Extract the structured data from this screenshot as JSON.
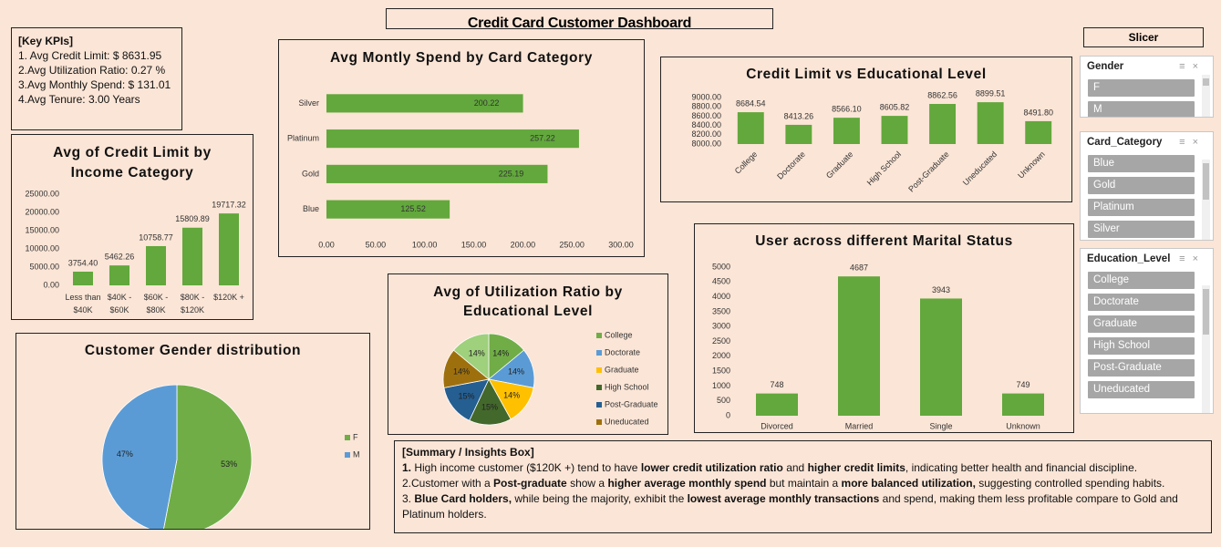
{
  "title": "Credit Card Customer Dashboard",
  "kpis": {
    "heading": "[Key KPIs]",
    "items": [
      "1. Avg Credit Limit: $ 8631.95",
      "2.Avg Utilization Ratio: 0.27 %",
      "3.Avg Monthly Spend: $ 131.01",
      "4.Avg Tenure: 3.00 Years"
    ]
  },
  "chart_data": [
    {
      "type": "bar",
      "horizontal": true,
      "title": "Avg Montly Spend by Card Category",
      "categories": [
        "Silver",
        "Platinum",
        "Gold",
        "Blue"
      ],
      "values": [
        200.22,
        257.22,
        225.19,
        125.52
      ],
      "color": "#62a83c",
      "xlim": [
        0,
        300
      ],
      "xticks": [
        {
          "value": 0,
          "label": "0.00"
        },
        {
          "value": 50,
          "label": "50.00"
        },
        {
          "value": 100,
          "label": "100.00"
        },
        {
          "value": 150,
          "label": "150.00"
        },
        {
          "value": 200,
          "label": "200.00"
        },
        {
          "value": 250,
          "label": "250.00"
        },
        {
          "value": 300,
          "label": "300.00"
        }
      ]
    },
    {
      "type": "bar",
      "title": "Credit Limit vs Educational Level",
      "categories": [
        "College",
        "Doctorate",
        "Graduate",
        "High School",
        "Post-Graduate",
        "Uneducated",
        "Unknown"
      ],
      "values": [
        8684.54,
        8413.26,
        8566.1,
        8605.82,
        8862.56,
        8899.51,
        8491.8
      ],
      "value_labels": [
        "8684.54",
        "8413.26",
        "8566.10",
        "8605.82",
        "8862.56",
        "8899.51",
        "8491.80"
      ],
      "color": "#62a83c",
      "ylim": [
        8000,
        9000
      ],
      "yticks": [
        {
          "value": 8000,
          "label": "8000.00"
        },
        {
          "value": 8200,
          "label": "8200.00"
        },
        {
          "value": 8400,
          "label": "8400.00"
        },
        {
          "value": 8600,
          "label": "8600.00"
        },
        {
          "value": 8800,
          "label": "8800.00"
        },
        {
          "value": 9000,
          "label": "9000.00"
        }
      ]
    },
    {
      "type": "bar",
      "title": "Avg of Credit Limit by Income Category",
      "categories": [
        "Less than $40K",
        "$40K - $60K",
        "$60K - $80K",
        "$80K - $120K",
        "$120K +"
      ],
      "values": [
        3754.4,
        5462.26,
        10758.77,
        15809.89,
        19717.32
      ],
      "value_labels": [
        "3754.40",
        "5462.26",
        "10758.77",
        "15809.89",
        "19717.32"
      ],
      "color": "#62a83c",
      "ylim": [
        0,
        25000
      ],
      "yticks": [
        {
          "value": 0,
          "label": "0.00"
        },
        {
          "value": 5000,
          "label": "5000.00"
        },
        {
          "value": 10000,
          "label": "10000.00"
        },
        {
          "value": 15000,
          "label": "15000.00"
        },
        {
          "value": 20000,
          "label": "20000.00"
        },
        {
          "value": 25000,
          "label": "25000.00"
        }
      ]
    },
    {
      "type": "bar",
      "title": "User across different Marital Status",
      "categories": [
        "Divorced",
        "Married",
        "Single",
        "Unknown"
      ],
      "values": [
        748,
        4687,
        3943,
        749
      ],
      "color": "#62a83c",
      "ylim": [
        0,
        5000
      ],
      "yticks": [
        0,
        500,
        1000,
        1500,
        2000,
        2500,
        3000,
        3500,
        4000,
        4500,
        5000
      ]
    },
    {
      "type": "pie",
      "title": "Avg of Utilization Ratio by Educational Level",
      "categories": [
        "College",
        "Doctorate",
        "Graduate",
        "High School",
        "Post-Graduate",
        "Uneducated",
        null
      ],
      "values": [
        14,
        14,
        14,
        15,
        15,
        14,
        14
      ],
      "value_labels": [
        "14%",
        "14%",
        "14%",
        "15%",
        "15%",
        "14%",
        "14%"
      ],
      "colors": [
        "#70ad47",
        "#5b9bd5",
        "#ffc000",
        "#43682b",
        "#255e91",
        "#9e700d",
        "#9fd07c"
      ],
      "legend": "right"
    },
    {
      "type": "pie",
      "title": "Customer Gender distribution",
      "categories": [
        "F",
        "M"
      ],
      "values": [
        53,
        47
      ],
      "value_labels": [
        "53%",
        "47%"
      ],
      "colors": [
        "#70ad47",
        "#5b9bd5"
      ],
      "legend": "right"
    }
  ],
  "slicer": {
    "title": "Slicer",
    "panels": [
      {
        "title": "Gender",
        "items": [
          "F",
          "M"
        ]
      },
      {
        "title": "Card_Category",
        "items": [
          "Blue",
          "Gold",
          "Platinum",
          "Silver"
        ]
      },
      {
        "title": "Education_Level",
        "items": [
          "College",
          "Doctorate",
          "Graduate",
          "High School",
          "Post-Graduate",
          "Uneducated"
        ]
      }
    ]
  },
  "summary": {
    "heading": "[Summary / Insights Box]",
    "lines": [
      [
        {
          "text": "1.",
          "bold": true
        },
        {
          "text": " High income customer ($120K +) tend to have "
        },
        {
          "text": "lower credit utilization ratio",
          "bold": true
        },
        {
          "text": " and "
        },
        {
          "text": "higher credit limits",
          "bold": true
        },
        {
          "text": ", indicating better health and financial discipline."
        }
      ],
      [
        {
          "text": "2.Customer with a "
        },
        {
          "text": "Post-graduate",
          "bold": true
        },
        {
          "text": " show a "
        },
        {
          "text": "higher average monthly spend",
          "bold": true
        },
        {
          "text": " but maintain a "
        },
        {
          "text": "more balanced utilization,",
          "bold": true
        },
        {
          "text": " suggesting controlled spending habits."
        }
      ],
      [
        {
          "text": "3. "
        },
        {
          "text": "Blue Card holders,",
          "bold": true
        },
        {
          "text": " while being the majority, exhibit the "
        },
        {
          "text": "lowest average monthly transactions",
          "bold": true
        },
        {
          "text": " and spend, making them less profitable compare to Gold and Platinum holders."
        }
      ]
    ]
  }
}
